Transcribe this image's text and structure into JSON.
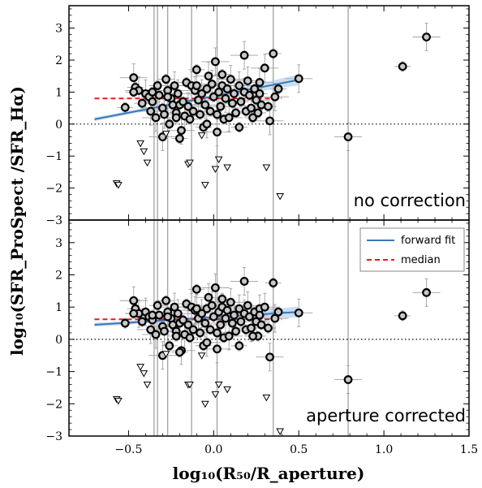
{
  "chart_data": [
    {
      "type": "scatter",
      "panel_label": "no correction",
      "xlim": [
        -0.85,
        1.5
      ],
      "ylim": [
        -3,
        3.7
      ],
      "grid": false,
      "zero_line": {
        "y": 0,
        "style": "dotted"
      },
      "median": 0.8,
      "fit": {
        "x0": -0.7,
        "y0": 0.15,
        "x1": 0.5,
        "y1": 1.38,
        "band": 0.12
      },
      "detections": [
        [
          -0.52,
          0.52
        ],
        [
          -0.47,
          1.45
        ],
        [
          -0.46,
          1.15
        ],
        [
          -0.44,
          1.05
        ],
        [
          -0.42,
          0.65
        ],
        [
          -0.4,
          0.95
        ],
        [
          -0.38,
          0.85
        ],
        [
          -0.37,
          0.4
        ],
        [
          -0.36,
          0.7
        ],
        [
          -0.34,
          0.2
        ],
        [
          -0.33,
          1.2
        ],
        [
          -0.32,
          0.9
        ],
        [
          -0.3,
          0.5
        ],
        [
          -0.29,
          0.3
        ],
        [
          -0.28,
          1.4
        ],
        [
          -0.27,
          1.05
        ],
        [
          -0.26,
          0.0
        ],
        [
          -0.25,
          0.8
        ],
        [
          -0.24,
          0.6
        ],
        [
          -0.23,
          1.2
        ],
        [
          -0.22,
          0.35
        ],
        [
          -0.21,
          0.95
        ],
        [
          -0.2,
          0.6
        ],
        [
          -0.19,
          -0.2
        ],
        [
          -0.18,
          0.7
        ],
        [
          -0.17,
          0.25
        ],
        [
          -0.16,
          1.3
        ],
        [
          -0.15,
          0.55
        ],
        [
          -0.14,
          0.15
        ],
        [
          -0.13,
          1.2
        ],
        [
          -0.12,
          0.4
        ],
        [
          -0.11,
          1.05
        ],
        [
          -0.1,
          1.7
        ],
        [
          -0.09,
          0.75
        ],
        [
          -0.08,
          0.3
        ],
        [
          -0.07,
          0.95
        ],
        [
          -0.06,
          -0.1
        ],
        [
          -0.05,
          0.6
        ],
        [
          -0.04,
          1.1
        ],
        [
          -0.03,
          1.5
        ],
        [
          -0.02,
          0.4
        ],
        [
          -0.01,
          1.25
        ],
        [
          0.0,
          0.85
        ],
        [
          0.01,
          1.95
        ],
        [
          0.02,
          0.3
        ],
        [
          0.03,
          1.0
        ],
        [
          0.04,
          0.55
        ],
        [
          0.05,
          1.2
        ],
        [
          0.06,
          0.15
        ],
        [
          0.07,
          0.8
        ],
        [
          0.08,
          1.1
        ],
        [
          0.1,
          1.4
        ],
        [
          0.11,
          0.65
        ],
        [
          0.12,
          0.95
        ],
        [
          0.13,
          0.35
        ],
        [
          0.15,
          1.2
        ],
        [
          0.16,
          0.7
        ],
        [
          0.18,
          1.0
        ],
        [
          0.19,
          0.4
        ],
        [
          0.2,
          1.35
        ],
        [
          0.21,
          0.9
        ],
        [
          0.22,
          0.5
        ],
        [
          0.24,
          1.1
        ],
        [
          0.25,
          0.75
        ],
        [
          0.26,
          0.35
        ],
        [
          0.27,
          1.3
        ],
        [
          0.28,
          0.6
        ],
        [
          0.3,
          1.75
        ],
        [
          0.32,
          0.55
        ],
        [
          0.33,
          0.1
        ],
        [
          0.35,
          2.2
        ],
        [
          0.36,
          0.85
        ],
        [
          0.38,
          1.1
        ],
        [
          -0.3,
          -0.4
        ],
        [
          0.15,
          -0.1
        ],
        [
          0.18,
          2.15
        ],
        [
          -0.36,
          1.0
        ],
        [
          -0.27,
          0.85
        ],
        [
          -0.2,
          -0.45
        ],
        [
          0.02,
          -0.25
        ],
        [
          0.05,
          1.55
        ],
        [
          0.5,
          1.42
        ],
        [
          -0.47,
          1.0
        ],
        [
          -0.1,
          1.2
        ],
        [
          -0.22,
          0.2
        ],
        [
          0.09,
          0.2
        ],
        [
          0.23,
          0.2
        ],
        [
          -0.04,
          0.0
        ],
        [
          0.27,
          0.95
        ],
        [
          0.79,
          -0.4
        ],
        [
          1.11,
          1.8
        ],
        [
          1.25,
          2.72
        ]
      ],
      "upper_limits": [
        [
          -0.57,
          -1.85
        ],
        [
          -0.56,
          -1.9
        ],
        [
          -0.43,
          -0.6
        ],
        [
          -0.41,
          -0.85
        ],
        [
          -0.39,
          -1.2
        ],
        [
          -0.15,
          -1.25
        ],
        [
          -0.14,
          -1.2
        ],
        [
          -0.05,
          -1.9
        ],
        [
          0.01,
          -1.4
        ],
        [
          0.03,
          -1.1
        ],
        [
          0.08,
          -1.35
        ],
        [
          0.31,
          -1.35
        ],
        [
          0.39,
          -2.25
        ],
        [
          -0.28,
          -0.3
        ],
        [
          -0.07,
          -0.35
        ]
      ],
      "vertical_bars": [
        -0.35,
        -0.33,
        -0.27,
        -0.13,
        0.02,
        0.35,
        0.79
      ]
    },
    {
      "type": "scatter",
      "panel_label": "aperture corrected",
      "xlim": [
        -0.85,
        1.5
      ],
      "ylim": [
        -3,
        3.7
      ],
      "grid": false,
      "zero_line": {
        "y": 0,
        "style": "dotted"
      },
      "median": 0.62,
      "fit": {
        "x0": -0.7,
        "y0": 0.45,
        "x1": 0.5,
        "y1": 0.85,
        "band": 0.12
      },
      "detections": [
        [
          -0.52,
          0.5
        ],
        [
          -0.47,
          1.2
        ],
        [
          -0.46,
          0.95
        ],
        [
          -0.44,
          0.8
        ],
        [
          -0.42,
          0.55
        ],
        [
          -0.4,
          0.85
        ],
        [
          -0.38,
          0.7
        ],
        [
          -0.37,
          0.3
        ],
        [
          -0.36,
          0.6
        ],
        [
          -0.34,
          0.15
        ],
        [
          -0.33,
          1.05
        ],
        [
          -0.32,
          0.75
        ],
        [
          -0.3,
          0.4
        ],
        [
          -0.29,
          0.25
        ],
        [
          -0.28,
          1.2
        ],
        [
          -0.27,
          0.85
        ],
        [
          -0.26,
          -0.2
        ],
        [
          -0.25,
          0.65
        ],
        [
          -0.24,
          0.45
        ],
        [
          -0.23,
          1.0
        ],
        [
          -0.22,
          0.25
        ],
        [
          -0.21,
          0.8
        ],
        [
          -0.2,
          0.5
        ],
        [
          -0.19,
          -0.35
        ],
        [
          -0.18,
          0.6
        ],
        [
          -0.17,
          0.15
        ],
        [
          -0.16,
          1.1
        ],
        [
          -0.15,
          0.45
        ],
        [
          -0.14,
          0.05
        ],
        [
          -0.13,
          1.0
        ],
        [
          -0.12,
          0.3
        ],
        [
          -0.11,
          0.9
        ],
        [
          -0.1,
          1.55
        ],
        [
          -0.09,
          0.65
        ],
        [
          -0.08,
          0.2
        ],
        [
          -0.07,
          0.8
        ],
        [
          -0.06,
          -0.2
        ],
        [
          -0.05,
          0.5
        ],
        [
          -0.04,
          0.95
        ],
        [
          -0.03,
          1.3
        ],
        [
          -0.02,
          0.3
        ],
        [
          -0.01,
          1.05
        ],
        [
          0.0,
          0.7
        ],
        [
          0.01,
          1.6
        ],
        [
          0.02,
          0.2
        ],
        [
          0.03,
          0.85
        ],
        [
          0.04,
          0.45
        ],
        [
          0.05,
          1.0
        ],
        [
          0.06,
          0.05
        ],
        [
          0.07,
          0.65
        ],
        [
          0.08,
          0.9
        ],
        [
          0.1,
          1.15
        ],
        [
          0.11,
          0.5
        ],
        [
          0.12,
          0.75
        ],
        [
          0.13,
          0.25
        ],
        [
          0.15,
          0.95
        ],
        [
          0.16,
          0.55
        ],
        [
          0.18,
          0.8
        ],
        [
          0.19,
          0.3
        ],
        [
          0.2,
          1.05
        ],
        [
          0.21,
          0.7
        ],
        [
          0.22,
          0.35
        ],
        [
          0.24,
          0.85
        ],
        [
          0.25,
          0.55
        ],
        [
          0.26,
          0.1
        ],
        [
          0.27,
          0.95
        ],
        [
          0.28,
          0.45
        ],
        [
          0.3,
          1.0
        ],
        [
          0.32,
          0.35
        ],
        [
          0.33,
          -0.55
        ],
        [
          0.35,
          1.75
        ],
        [
          0.36,
          0.65
        ],
        [
          0.38,
          0.85
        ],
        [
          -0.3,
          -0.5
        ],
        [
          0.15,
          -0.2
        ],
        [
          0.18,
          1.8
        ],
        [
          -0.36,
          0.75
        ],
        [
          -0.27,
          0.7
        ],
        [
          -0.2,
          -0.4
        ],
        [
          0.02,
          -0.3
        ],
        [
          0.05,
          1.25
        ],
        [
          0.5,
          0.82
        ],
        [
          -0.47,
          0.8
        ],
        [
          -0.1,
          0.95
        ],
        [
          -0.22,
          0.1
        ],
        [
          0.09,
          0.1
        ],
        [
          0.23,
          0.1
        ],
        [
          -0.04,
          -0.1
        ],
        [
          0.27,
          0.75
        ],
        [
          0.79,
          -1.25
        ],
        [
          1.11,
          0.73
        ],
        [
          1.25,
          1.45
        ]
      ],
      "upper_limits": [
        [
          -0.57,
          -1.85
        ],
        [
          -0.56,
          -1.9
        ],
        [
          -0.43,
          -0.85
        ],
        [
          -0.41,
          -1.05
        ],
        [
          -0.39,
          -1.4
        ],
        [
          -0.15,
          -1.4
        ],
        [
          -0.14,
          -1.4
        ],
        [
          -0.05,
          -2.0
        ],
        [
          0.01,
          -1.7
        ],
        [
          0.03,
          -1.4
        ],
        [
          0.08,
          -1.55
        ],
        [
          0.31,
          -1.8
        ],
        [
          0.39,
          -2.85
        ],
        [
          -0.28,
          -0.45
        ],
        [
          -0.07,
          -0.5
        ]
      ],
      "vertical_bars": [
        -0.35,
        -0.33,
        -0.27,
        -0.13,
        0.02,
        0.35,
        0.79
      ]
    }
  ],
  "axes": {
    "xlabel": "log₁₀(R₅₀/R_aperture)",
    "ylabel": "log₁₀(SFR_ProSpect /SFR_Hα)",
    "xticks": [
      -0.5,
      0.0,
      0.5,
      1.0,
      1.5
    ],
    "xtick_labels": [
      "−0.5",
      "0.0",
      "0.5",
      "1.0",
      "1.5"
    ],
    "yticks": [
      -3,
      -2,
      -1,
      0,
      1,
      2,
      3
    ],
    "ytick_labels": [
      "−3",
      "−2",
      "−1",
      "0",
      "1",
      "2",
      "3"
    ]
  },
  "legend": {
    "placement": "upper right of lower panel",
    "items": [
      {
        "label": "forward fit",
        "color": "#3a78b5",
        "style": "solid"
      },
      {
        "label": "median",
        "color": "#e31a1c",
        "style": "dashed"
      }
    ]
  },
  "colors": {
    "marker_fill": "#c8c8c8",
    "marker_edge": "#000000",
    "errorbar": "#a0a0a0",
    "fit_line": "#3a78b5",
    "fit_band": "#9ec3e6",
    "median_line": "#e31a1c"
  }
}
